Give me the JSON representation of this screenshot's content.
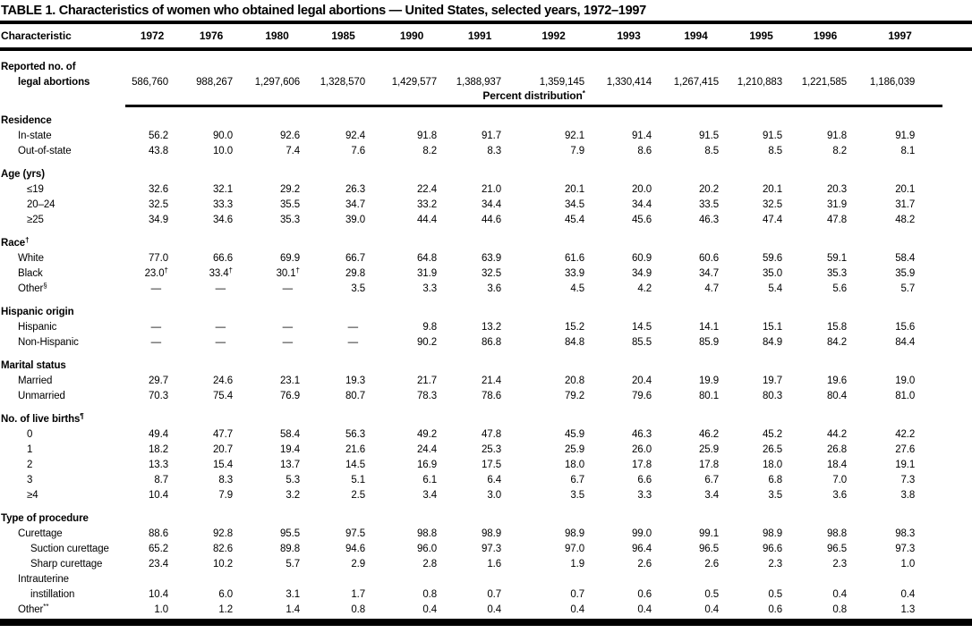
{
  "title": "TABLE 1. Characteristics of women who obtained legal abortions — United States, selected years, 1972–1997",
  "table": {
    "characteristic_header": "Characteristic",
    "year_headers": [
      "1972",
      "1976",
      "1980",
      "1985",
      "1990",
      "1991",
      "1992",
      "1993",
      "1994",
      "1995",
      "1996",
      "1997"
    ],
    "percent_banner": "Percent distribution*",
    "rows": [
      {
        "label": "Reported no. of",
        "level": 0,
        "bold": true,
        "type": "abort1",
        "values": null
      },
      {
        "label": "legal abortions",
        "level": 1,
        "bold": true,
        "type": "abort2",
        "values": [
          "586,760",
          "988,267",
          "1,297,606",
          "1,328,570",
          "1,429,577",
          "1,388,937",
          "1,359,145",
          "1,330,414",
          "1,267,415",
          "1,210,883",
          "1,221,585",
          "1,186,039"
        ]
      },
      {
        "label": "Percent distribution*",
        "type": "banner",
        "values": null
      },
      {
        "label": "Residence",
        "level": 0,
        "bold": true,
        "type": "section-first",
        "values": null
      },
      {
        "label": "In-state",
        "level": 1,
        "values": [
          "56.2",
          "90.0",
          "92.6",
          "92.4",
          "91.8",
          "91.7",
          "92.1",
          "91.4",
          "91.5",
          "91.5",
          "91.8",
          "91.9"
        ]
      },
      {
        "label": "Out-of-state",
        "level": 1,
        "values": [
          "43.8",
          "10.0",
          "7.4",
          "7.6",
          "8.2",
          "8.3",
          "7.9",
          "8.6",
          "8.5",
          "8.5",
          "8.2",
          "8.1"
        ]
      },
      {
        "label": "Age (yrs)",
        "level": 0,
        "bold": true,
        "type": "section",
        "values": null
      },
      {
        "label": "≤19",
        "level": 3,
        "values": [
          "32.6",
          "32.1",
          "29.2",
          "26.3",
          "22.4",
          "21.0",
          "20.1",
          "20.0",
          "20.2",
          "20.1",
          "20.3",
          "20.1"
        ]
      },
      {
        "label": "20–24",
        "level": 3,
        "values": [
          "32.5",
          "33.3",
          "35.5",
          "34.7",
          "33.2",
          "34.4",
          "34.5",
          "34.4",
          "33.5",
          "32.5",
          "31.9",
          "31.7"
        ]
      },
      {
        "label": "≥25",
        "level": 3,
        "values": [
          "34.9",
          "34.6",
          "35.3",
          "39.0",
          "44.4",
          "44.6",
          "45.4",
          "45.6",
          "46.3",
          "47.4",
          "47.8",
          "48.2"
        ]
      },
      {
        "label": "Race†",
        "level": 0,
        "bold": true,
        "type": "section",
        "values": null
      },
      {
        "label": "White",
        "level": 1,
        "values": [
          "77.0",
          "66.6",
          "69.9",
          "66.7",
          "64.8",
          "63.9",
          "61.6",
          "60.9",
          "60.6",
          "59.6",
          "59.1",
          "58.4"
        ]
      },
      {
        "label": "Black",
        "level": 1,
        "values": [
          "23.0†",
          "33.4†",
          "30.1†",
          "29.8",
          "31.9",
          "32.5",
          "33.9",
          "34.9",
          "34.7",
          "35.0",
          "35.3",
          "35.9"
        ]
      },
      {
        "label": "Other§",
        "level": 1,
        "values": [
          "—",
          "—",
          "—",
          "3.5",
          "3.3",
          "3.6",
          "4.5",
          "4.2",
          "4.7",
          "5.4",
          "5.6",
          "5.7"
        ]
      },
      {
        "label": "Hispanic origin",
        "level": 0,
        "bold": true,
        "type": "section",
        "values": null
      },
      {
        "label": "Hispanic",
        "level": 1,
        "values": [
          "—",
          "—",
          "—",
          "—",
          "9.8",
          "13.2",
          "15.2",
          "14.5",
          "14.1",
          "15.1",
          "15.8",
          "15.6"
        ]
      },
      {
        "label": "Non-Hispanic",
        "level": 1,
        "values": [
          "—",
          "—",
          "—",
          "—",
          "90.2",
          "86.8",
          "84.8",
          "85.5",
          "85.9",
          "84.9",
          "84.2",
          "84.4"
        ]
      },
      {
        "label": "Marital status",
        "level": 0,
        "bold": true,
        "type": "section",
        "values": null
      },
      {
        "label": "Married",
        "level": 1,
        "values": [
          "29.7",
          "24.6",
          "23.1",
          "19.3",
          "21.7",
          "21.4",
          "20.8",
          "20.4",
          "19.9",
          "19.7",
          "19.6",
          "19.0"
        ]
      },
      {
        "label": "Unmarried",
        "level": 1,
        "values": [
          "70.3",
          "75.4",
          "76.9",
          "80.7",
          "78.3",
          "78.6",
          "79.2",
          "79.6",
          "80.1",
          "80.3",
          "80.4",
          "81.0"
        ]
      },
      {
        "label": "No. of live births¶",
        "level": 0,
        "bold": true,
        "type": "section",
        "values": null
      },
      {
        "label": "0",
        "level": 3,
        "values": [
          "49.4",
          "47.7",
          "58.4",
          "56.3",
          "49.2",
          "47.8",
          "45.9",
          "46.3",
          "46.2",
          "45.2",
          "44.2",
          "42.2"
        ]
      },
      {
        "label": "1",
        "level": 3,
        "values": [
          "18.2",
          "20.7",
          "19.4",
          "21.6",
          "24.4",
          "25.3",
          "25.9",
          "26.0",
          "25.9",
          "26.5",
          "26.8",
          "27.6"
        ]
      },
      {
        "label": "2",
        "level": 3,
        "values": [
          "13.3",
          "15.4",
          "13.7",
          "14.5",
          "16.9",
          "17.5",
          "18.0",
          "17.8",
          "17.8",
          "18.0",
          "18.4",
          "19.1"
        ]
      },
      {
        "label": "3",
        "level": 3,
        "values": [
          "8.7",
          "8.3",
          "5.3",
          "5.1",
          "6.1",
          "6.4",
          "6.7",
          "6.6",
          "6.7",
          "6.8",
          "7.0",
          "7.3"
        ]
      },
      {
        "label": "≥4",
        "level": 3,
        "values": [
          "10.4",
          "7.9",
          "3.2",
          "2.5",
          "3.4",
          "3.0",
          "3.5",
          "3.3",
          "3.4",
          "3.5",
          "3.6",
          "3.8"
        ]
      },
      {
        "label": "Type of procedure",
        "level": 0,
        "bold": true,
        "type": "section",
        "values": null
      },
      {
        "label": "Curettage",
        "level": 1,
        "values": [
          "88.6",
          "92.8",
          "95.5",
          "97.5",
          "98.8",
          "98.9",
          "98.9",
          "99.0",
          "99.1",
          "98.9",
          "98.8",
          "98.3"
        ]
      },
      {
        "label": "Suction curettage",
        "level": 2,
        "values": [
          "65.2",
          "82.6",
          "89.8",
          "94.6",
          "96.0",
          "97.3",
          "97.0",
          "96.4",
          "96.5",
          "96.6",
          "96.5",
          "97.3"
        ]
      },
      {
        "label": "Sharp curettage",
        "level": 2,
        "values": [
          "23.4",
          "10.2",
          "5.7",
          "2.9",
          "2.8",
          "1.6",
          "1.9",
          "2.6",
          "2.6",
          "2.3",
          "2.3",
          "1.0"
        ]
      },
      {
        "label": "Intrauterine",
        "level": 1,
        "values": null
      },
      {
        "label": "instillation",
        "level": 2,
        "values": [
          "10.4",
          "6.0",
          "3.1",
          "1.7",
          "0.8",
          "0.7",
          "0.7",
          "0.6",
          "0.5",
          "0.5",
          "0.4",
          "0.4"
        ]
      },
      {
        "label": "Other**",
        "level": 1,
        "values": [
          "1.0",
          "1.2",
          "1.4",
          "0.8",
          "0.4",
          "0.4",
          "0.4",
          "0.4",
          "0.4",
          "0.6",
          "0.8",
          "1.3"
        ]
      }
    ]
  }
}
